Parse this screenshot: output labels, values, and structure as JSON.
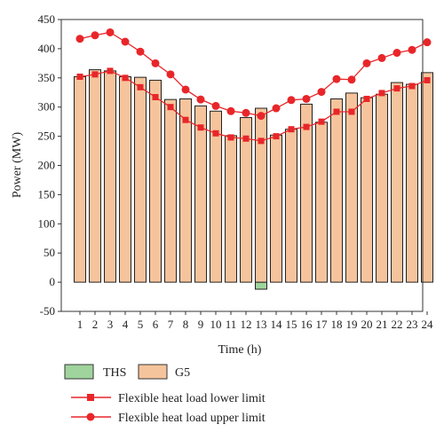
{
  "chart_data": {
    "type": "bar",
    "xlabel": "Time (h)",
    "ylabel": "Power (MW)",
    "ylim": [
      -50,
      450
    ],
    "yticks": [
      -50,
      0,
      50,
      100,
      150,
      200,
      250,
      300,
      350,
      400,
      450
    ],
    "categories": [
      "1",
      "2",
      "3",
      "4",
      "5",
      "6",
      "7",
      "8",
      "9",
      "10",
      "11",
      "12",
      "13",
      "14",
      "15",
      "16",
      "17",
      "18",
      "19",
      "20",
      "21",
      "22",
      "23",
      "24"
    ],
    "bar_series": [
      {
        "name": "THS",
        "color": "#9fd49c",
        "values": [
          0,
          0,
          0,
          0,
          0,
          0,
          0,
          0,
          0,
          0,
          0,
          0,
          -12,
          0,
          0,
          0,
          0,
          0,
          0,
          0,
          0,
          0,
          0,
          0
        ]
      },
      {
        "name": "G5",
        "color": "#f6c49c",
        "values": [
          352,
          364,
          362,
          352,
          351,
          346,
          313,
          314,
          302,
          293,
          251,
          282,
          298,
          252,
          262,
          305,
          274,
          314,
          324,
          316,
          322,
          342,
          339,
          359
        ]
      }
    ],
    "line_series": [
      {
        "name": "Flexible heat load lower limit",
        "marker": "square",
        "color": "#e8262a",
        "values": [
          352,
          356,
          362,
          350,
          334,
          317,
          300,
          278,
          265,
          255,
          248,
          246,
          242,
          250,
          262,
          266,
          275,
          292,
          292,
          314,
          324,
          332,
          336,
          346
        ]
      },
      {
        "name": "Flexible heat load upper limit",
        "marker": "circle",
        "color": "#e8262a",
        "values": [
          417,
          423,
          428,
          412,
          395,
          375,
          356,
          330,
          313,
          302,
          293,
          290,
          285,
          298,
          312,
          314,
          326,
          348,
          347,
          375,
          384,
          393,
          398,
          411
        ]
      }
    ],
    "grid": false,
    "legend_position": "bottom"
  }
}
